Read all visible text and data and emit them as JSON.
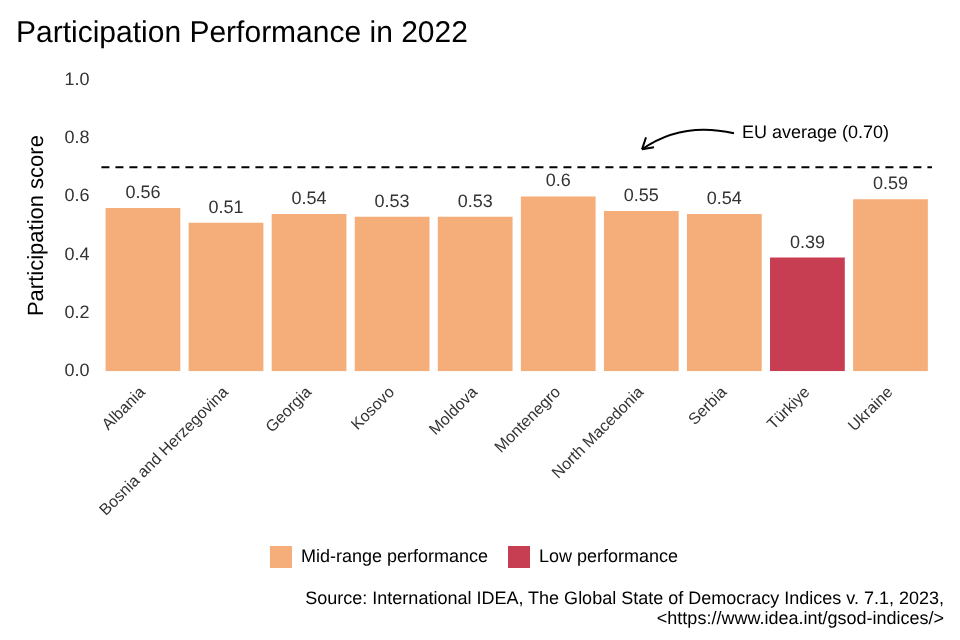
{
  "chart_data": {
    "type": "bar",
    "title": "Participation Performance in 2022",
    "ylabel": "Participation score",
    "categories": [
      "Albania",
      "Bosnia and Herzegovina",
      "Georgia",
      "Kosovo",
      "Moldova",
      "Montenegro",
      "North Macedonia",
      "Serbia",
      "Türkiye",
      "Ukraine"
    ],
    "series": [
      {
        "name": "Mid-range performance",
        "color": "#f5ad79",
        "values": [
          0.56,
          0.51,
          0.54,
          0.53,
          0.53,
          0.6,
          0.55,
          0.54,
          null,
          0.59
        ]
      },
      {
        "name": "Low performance",
        "color": "#c73d51",
        "values": [
          null,
          null,
          null,
          null,
          null,
          null,
          null,
          null,
          0.39,
          null
        ]
      }
    ],
    "ylim": [
      0,
      1.0
    ],
    "yticks": [
      {
        "value": 0,
        "label": "0.0"
      },
      {
        "value": 0.2,
        "label": "0.2"
      },
      {
        "value": 0.4,
        "label": "0.4"
      },
      {
        "value": 0.6,
        "label": "0.6"
      },
      {
        "value": 0.8,
        "label": "0.8"
      },
      {
        "value": 1,
        "label": "1.0"
      }
    ],
    "data_labels": true,
    "grid": false,
    "legend": "bottom",
    "ref_lines": [
      {
        "axis": "y",
        "value": 0.7,
        "label": "EU average (0.70)",
        "line_style": "dashed"
      }
    ],
    "annotations": [
      "Source: International IDEA, The Global State of Democracy Indices v. 7.1, 2023,\n<https://www.idea.int/gsod-indices/>"
    ]
  }
}
